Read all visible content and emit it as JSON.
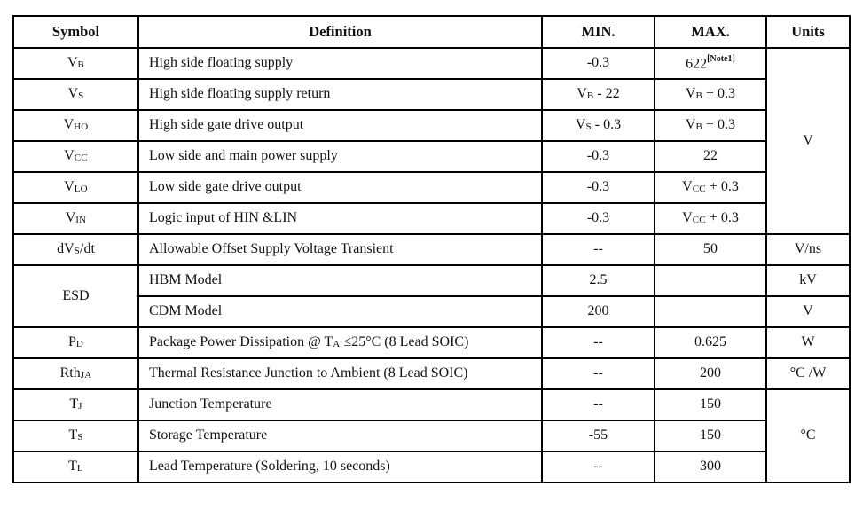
{
  "page": {
    "background": "#ffffff",
    "border_color": "#000000",
    "text_color": "#111111"
  },
  "table": {
    "columns": [
      {
        "label": "Symbol"
      },
      {
        "label": "Definition"
      },
      {
        "label": "MIN."
      },
      {
        "label": "MAX."
      },
      {
        "label": "Units"
      }
    ],
    "rows": [
      {
        "symbol": [
          {
            "t": "V"
          },
          {
            "sub": "B"
          }
        ],
        "definition": "High side floating supply",
        "min": "-0.3",
        "max": [
          {
            "t": "622"
          },
          {
            "sup": "[Note1]"
          }
        ],
        "units": {
          "rowspan": 6,
          "parts": [
            {
              "t": "V"
            }
          ]
        }
      },
      {
        "symbol": [
          {
            "t": "V"
          },
          {
            "sub": "S"
          }
        ],
        "definition": "High side floating supply return",
        "min": [
          {
            "t": "V"
          },
          {
            "sub": "B"
          },
          {
            "t": " - 22"
          }
        ],
        "max": [
          {
            "t": "V"
          },
          {
            "sub": "B"
          },
          {
            "t": " + 0.3"
          }
        ],
        "units": null
      },
      {
        "symbol": [
          {
            "t": "V"
          },
          {
            "sub": "HO"
          }
        ],
        "definition": "High side gate drive output",
        "min": [
          {
            "t": "V"
          },
          {
            "sub": "S"
          },
          {
            "t": " - 0.3"
          }
        ],
        "max": [
          {
            "t": "V"
          },
          {
            "sub": "B"
          },
          {
            "t": " + 0.3"
          }
        ],
        "units": null
      },
      {
        "symbol": [
          {
            "t": "V"
          },
          {
            "sub": "CC"
          }
        ],
        "definition": "Low side and main power supply",
        "min": "-0.3",
        "max": "22",
        "units": null
      },
      {
        "symbol": [
          {
            "t": "V"
          },
          {
            "sub": "LO"
          }
        ],
        "definition": "Low side gate drive output",
        "min": "-0.3",
        "max": [
          {
            "t": "V"
          },
          {
            "sub": "CC"
          },
          {
            "t": " + 0.3"
          }
        ],
        "units": null
      },
      {
        "symbol": [
          {
            "t": "V"
          },
          {
            "sub": "IN"
          }
        ],
        "definition": "Logic input of HIN &LIN",
        "min": "-0.3",
        "max": [
          {
            "t": "V"
          },
          {
            "sub": "CC"
          },
          {
            "t": " + 0.3"
          }
        ],
        "units": null
      },
      {
        "symbol": [
          {
            "t": "dV"
          },
          {
            "sub": "S"
          },
          {
            "t": "/dt"
          }
        ],
        "definition": "Allowable Offset Supply Voltage Transient",
        "min": "--",
        "max": "50",
        "units": "V/ns"
      },
      {
        "symbol": {
          "rowspan": 2,
          "parts": [
            {
              "t": "ESD"
            }
          ]
        },
        "definition": "HBM Model",
        "min": "2.5",
        "max": "",
        "units": "kV"
      },
      {
        "symbol": null,
        "definition": "CDM Model",
        "min": "200",
        "max": "",
        "units": "V"
      },
      {
        "symbol": [
          {
            "t": "P"
          },
          {
            "sub": "D"
          }
        ],
        "definition": [
          {
            "t": "Package Power Dissipation @ T"
          },
          {
            "sub": "A"
          },
          {
            "t": " ≤25°C (8 Lead SOIC)"
          }
        ],
        "min": "--",
        "max": "0.625",
        "units": "W"
      },
      {
        "symbol": [
          {
            "t": "Rth"
          },
          {
            "sub": "JA"
          }
        ],
        "definition": "Thermal Resistance Junction to Ambient (8 Lead SOIC)",
        "min": "--",
        "max": "200",
        "units": "°C /W"
      },
      {
        "symbol": [
          {
            "t": "T"
          },
          {
            "sub": "J"
          }
        ],
        "definition": "Junction Temperature",
        "min": "--",
        "max": "150",
        "units": {
          "rowspan": 3,
          "parts": [
            {
              "t": "°C"
            }
          ]
        }
      },
      {
        "symbol": [
          {
            "t": "T"
          },
          {
            "sub": "S"
          }
        ],
        "definition": "Storage Temperature",
        "min": "-55",
        "max": "150",
        "units": null
      },
      {
        "symbol": [
          {
            "t": "T"
          },
          {
            "sub": "L"
          }
        ],
        "definition": "Lead Temperature (Soldering, 10 seconds)",
        "min": "--",
        "max": "300",
        "units": null
      }
    ]
  }
}
